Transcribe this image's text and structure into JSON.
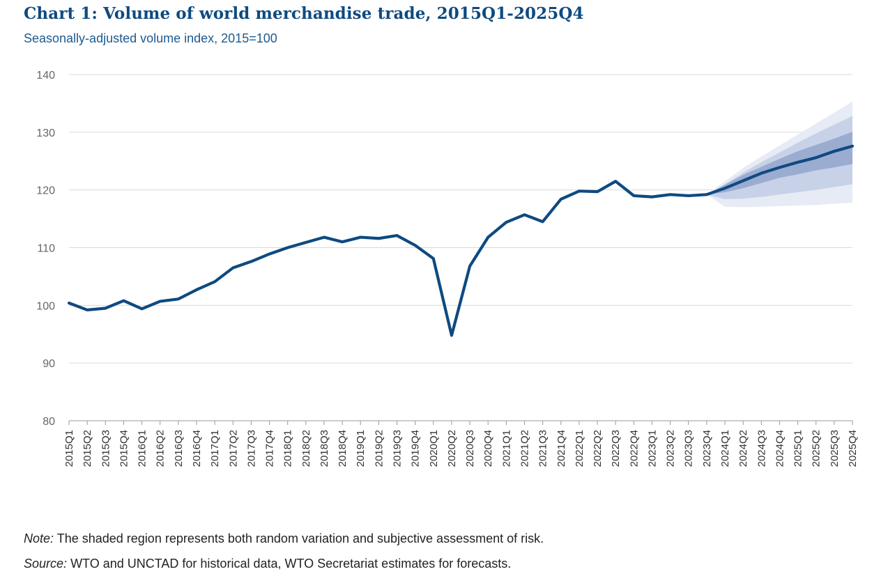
{
  "header": {
    "title": "Chart 1: Volume of world merchandise trade, 2015Q1-2025Q4",
    "subtitle": "Seasonally-adjusted volume index, 2015=100"
  },
  "footer": {
    "note_label": "Note:",
    "note_text": "The shaded region represents both random variation and subjective assessment of risk.",
    "source_label": "Source:",
    "source_text": "WTO and UNCTAD for historical data, WTO Secretariat estimates for forecasts."
  },
  "colors": {
    "line": "#0e4a80",
    "band_outer": "#e6ebf5",
    "band_mid": "#c7d2e8",
    "band_inner": "#9bacd1",
    "grid": "#d9d9d9",
    "axis": "#999999"
  },
  "chart_data": {
    "type": "line",
    "title": "Chart 1: Volume of world merchandise trade, 2015Q1-2025Q4",
    "subtitle": "Seasonally-adjusted volume index, 2015=100",
    "xlabel": "",
    "ylabel": "",
    "ylim": [
      80,
      140
    ],
    "yticks": [
      80,
      90,
      100,
      110,
      120,
      130,
      140
    ],
    "grid": true,
    "categories": [
      "2015Q1",
      "2015Q2",
      "2015Q3",
      "2015Q4",
      "2016Q1",
      "2016Q2",
      "2016Q3",
      "2016Q4",
      "2017Q1",
      "2017Q2",
      "2017Q3",
      "2017Q4",
      "2018Q1",
      "2018Q2",
      "2018Q3",
      "2018Q4",
      "2019Q1",
      "2019Q2",
      "2019Q3",
      "2019Q4",
      "2020Q1",
      "2020Q2",
      "2020Q3",
      "2020Q4",
      "2021Q1",
      "2021Q2",
      "2021Q3",
      "2021Q4",
      "2022Q1",
      "2022Q2",
      "2022Q3",
      "2022Q4",
      "2023Q1",
      "2023Q2",
      "2023Q3",
      "2023Q4",
      "2024Q1",
      "2024Q2",
      "2024Q3",
      "2024Q4",
      "2025Q1",
      "2025Q2",
      "2025Q3",
      "2025Q4"
    ],
    "series": [
      {
        "name": "Volume index",
        "values": [
          100.4,
          99.2,
          99.5,
          100.8,
          99.4,
          100.7,
          101.1,
          102.7,
          104.1,
          106.5,
          107.6,
          108.9,
          110.0,
          110.9,
          111.8,
          111.0,
          111.8,
          111.6,
          112.1,
          110.4,
          108.1,
          94.8,
          106.8,
          111.8,
          114.4,
          115.7,
          114.5,
          118.4,
          119.8,
          119.7,
          121.5,
          119.0,
          118.8,
          119.2,
          119.0,
          119.2,
          120.3,
          121.6,
          122.9,
          123.9,
          124.8,
          125.6,
          126.7,
          127.6
        ]
      }
    ],
    "forecast_bands": {
      "start_index": 35,
      "outer": {
        "upper": [
          119.2,
          121.5,
          123.8,
          125.8,
          127.7,
          129.6,
          131.5,
          133.4,
          135.3
        ],
        "lower": [
          119.2,
          117.1,
          117.0,
          117.1,
          117.2,
          117.3,
          117.4,
          117.6,
          117.8
        ]
      },
      "mid": {
        "upper": [
          119.2,
          121.0,
          123.0,
          124.8,
          126.5,
          128.2,
          129.8,
          131.3,
          132.8
        ],
        "lower": [
          119.2,
          118.4,
          118.5,
          118.8,
          119.2,
          119.6,
          120.0,
          120.5,
          121.0
        ]
      },
      "inner": {
        "upper": [
          119.2,
          120.9,
          122.6,
          124.0,
          125.4,
          126.7,
          127.8,
          128.9,
          130.1
        ],
        "lower": [
          119.2,
          119.6,
          120.3,
          121.2,
          122.1,
          122.7,
          123.4,
          123.9,
          124.5
        ]
      }
    }
  }
}
